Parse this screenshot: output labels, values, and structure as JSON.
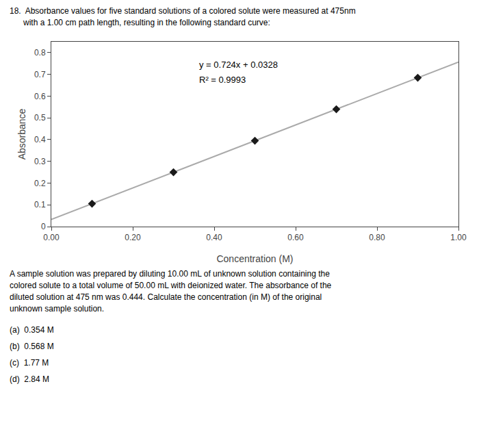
{
  "chart_data": {
    "type": "scatter",
    "title": [
      "18.  Absorbance values for five standard solutions of a colored solute were measured at 475nm",
      "      with a 1.00 cm path length, resulting in the following standard curve:"
    ],
    "xlabel": "Concentration (M)",
    "ylabel": "Absorbance",
    "xlim": [
      0.0,
      1.0
    ],
    "ylim": [
      0.0,
      0.85
    ],
    "xticks": [
      {
        "value": 0.0,
        "label": "0.00"
      },
      {
        "value": 0.2,
        "label": "0.20"
      },
      {
        "value": 0.4,
        "label": "0.40"
      },
      {
        "value": 0.6,
        "label": "0.60"
      },
      {
        "value": 0.8,
        "label": "0.80"
      },
      {
        "value": 1.0,
        "label": "1.00"
      }
    ],
    "yticks": [
      0,
      0.1,
      0.2,
      0.3,
      0.4,
      0.5,
      0.6,
      0.7,
      0.8
    ],
    "grid": false,
    "series": [
      {
        "type": "line",
        "line_style": "solid",
        "color": "#aaaaaa",
        "x": [
          0.0,
          1.0
        ],
        "values": [
          0.0328,
          0.7568
        ]
      },
      {
        "type": "scatter",
        "marker": "diamond",
        "color": "#1a1a1a",
        "x": [
          0.1,
          0.3,
          0.5,
          0.7,
          0.9
        ],
        "values": [
          0.1052,
          0.25,
          0.3948,
          0.5396,
          0.6844
        ]
      }
    ],
    "annotations": [
      "y = 0.724x + 0.0328",
      "R² = 0.9993"
    ],
    "body_lines": [
      "A sample solution was prepared by diluting 10.00 mL of unknown solution containing the",
      "colored solute to a total volume of 50.00 mL with deionized water. The absorbance of the",
      "diluted solution at 475 nm was 0.444. Calculate the concentration (in M) of the original",
      "unknown sample solution."
    ],
    "answers": [
      "(a)  0.354 M",
      "(b)  0.568 M",
      "(c)  1.77 M",
      "(d)  2.84 M"
    ]
  }
}
